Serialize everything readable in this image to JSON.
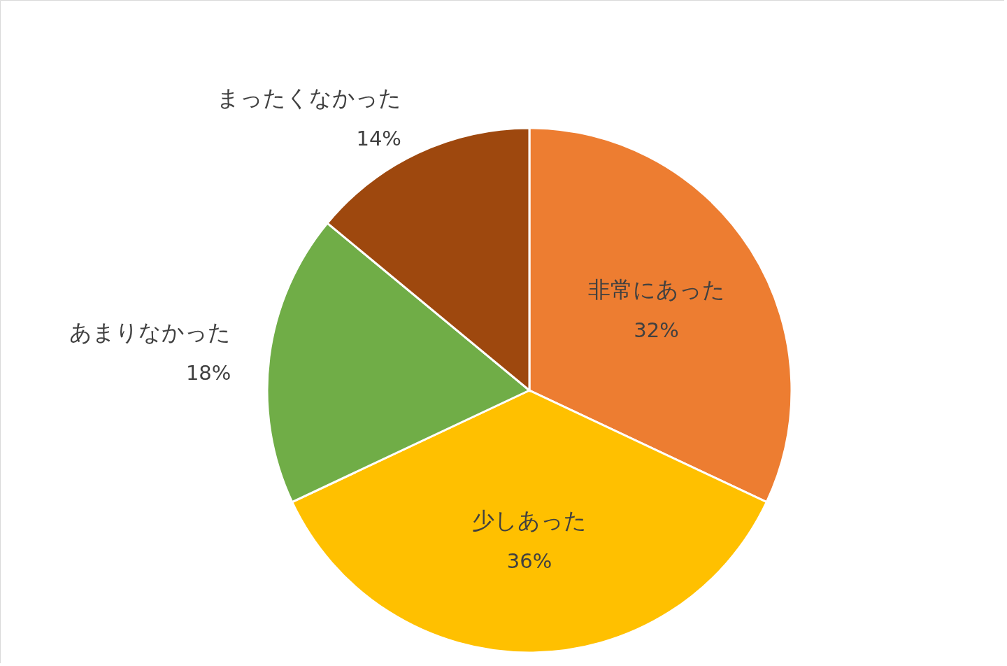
{
  "chart_data": {
    "type": "pie",
    "categories": [
      "非常にあった",
      "少しあった",
      "あまりなかった",
      "まったくなかった"
    ],
    "values": [
      32,
      36,
      18,
      14
    ],
    "value_labels": [
      "32%",
      "36%",
      "18%",
      "14%"
    ],
    "colors": [
      "#ed7d31",
      "#ffc000",
      "#70ad47",
      "#9e480e"
    ]
  }
}
